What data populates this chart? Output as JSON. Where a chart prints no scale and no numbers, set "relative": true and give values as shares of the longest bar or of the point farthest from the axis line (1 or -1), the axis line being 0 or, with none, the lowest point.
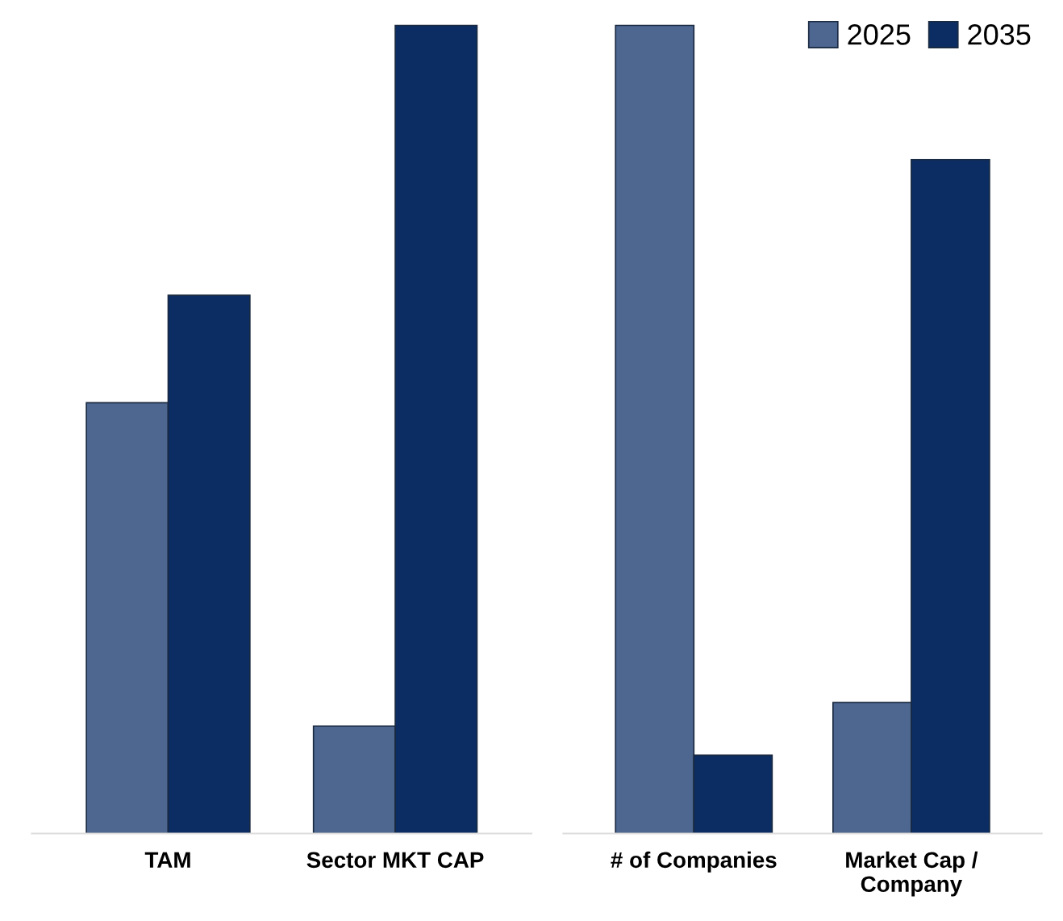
{
  "chart_data": [
    {
      "type": "bar",
      "relative": true,
      "categories": [
        "TAM",
        "Sector MKT CAP"
      ],
      "series": [
        {
          "name": "2025",
          "color": "#4d6791",
          "values": [
            0.533,
            0.133
          ]
        },
        {
          "name": "2035",
          "color": "#0b2d63",
          "values": [
            0.666,
            1
          ]
        }
      ],
      "legend": "top right",
      "grid": false
    },
    {
      "type": "bar",
      "relative": true,
      "categories": [
        "# of Companies",
        "Market Cap /\nCompany"
      ],
      "series": [
        {
          "name": "2025",
          "color": "#4d6791",
          "values": [
            1,
            0.162
          ]
        },
        {
          "name": "2035",
          "color": "#0b2d63",
          "values": [
            0.097,
            0.834
          ]
        }
      ],
      "legend": false,
      "grid": false
    }
  ]
}
